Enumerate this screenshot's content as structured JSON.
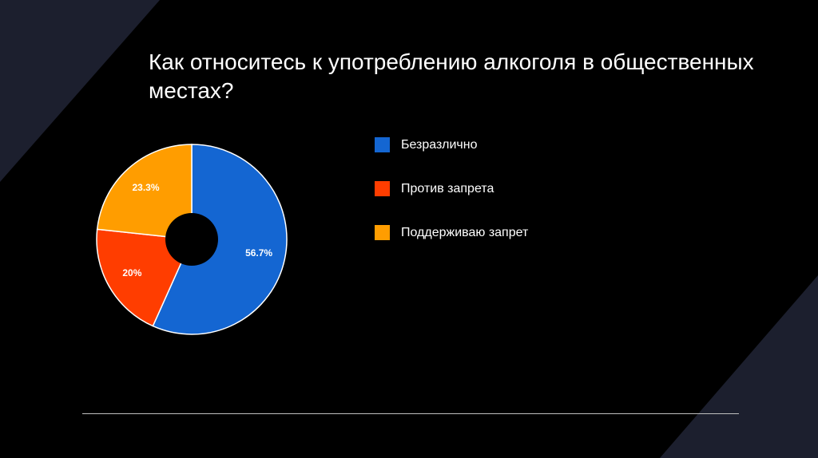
{
  "slide": {
    "title": "Как относитесь к употреблению алкоголя в общественных местах?"
  },
  "theme": {
    "background": "#000000",
    "decor_color": "#1c1f2e",
    "divider_color": "#bfbfbf"
  },
  "chart_data": {
    "type": "pie",
    "style": "donut",
    "title": "",
    "categories": [
      "Безразлично",
      "Против запрета",
      "Поддерживаю запрет"
    ],
    "values": [
      56.7,
      20,
      23.3
    ],
    "data_labels": [
      "56.7%",
      "20%",
      "23.3%"
    ],
    "colors": [
      "#1466d2",
      "#ff3d00",
      "#ff9d00"
    ],
    "legend": {
      "position": "right",
      "entries": [
        "Безразлично",
        "Против запрета",
        "Поддерживаю запрет"
      ]
    }
  }
}
